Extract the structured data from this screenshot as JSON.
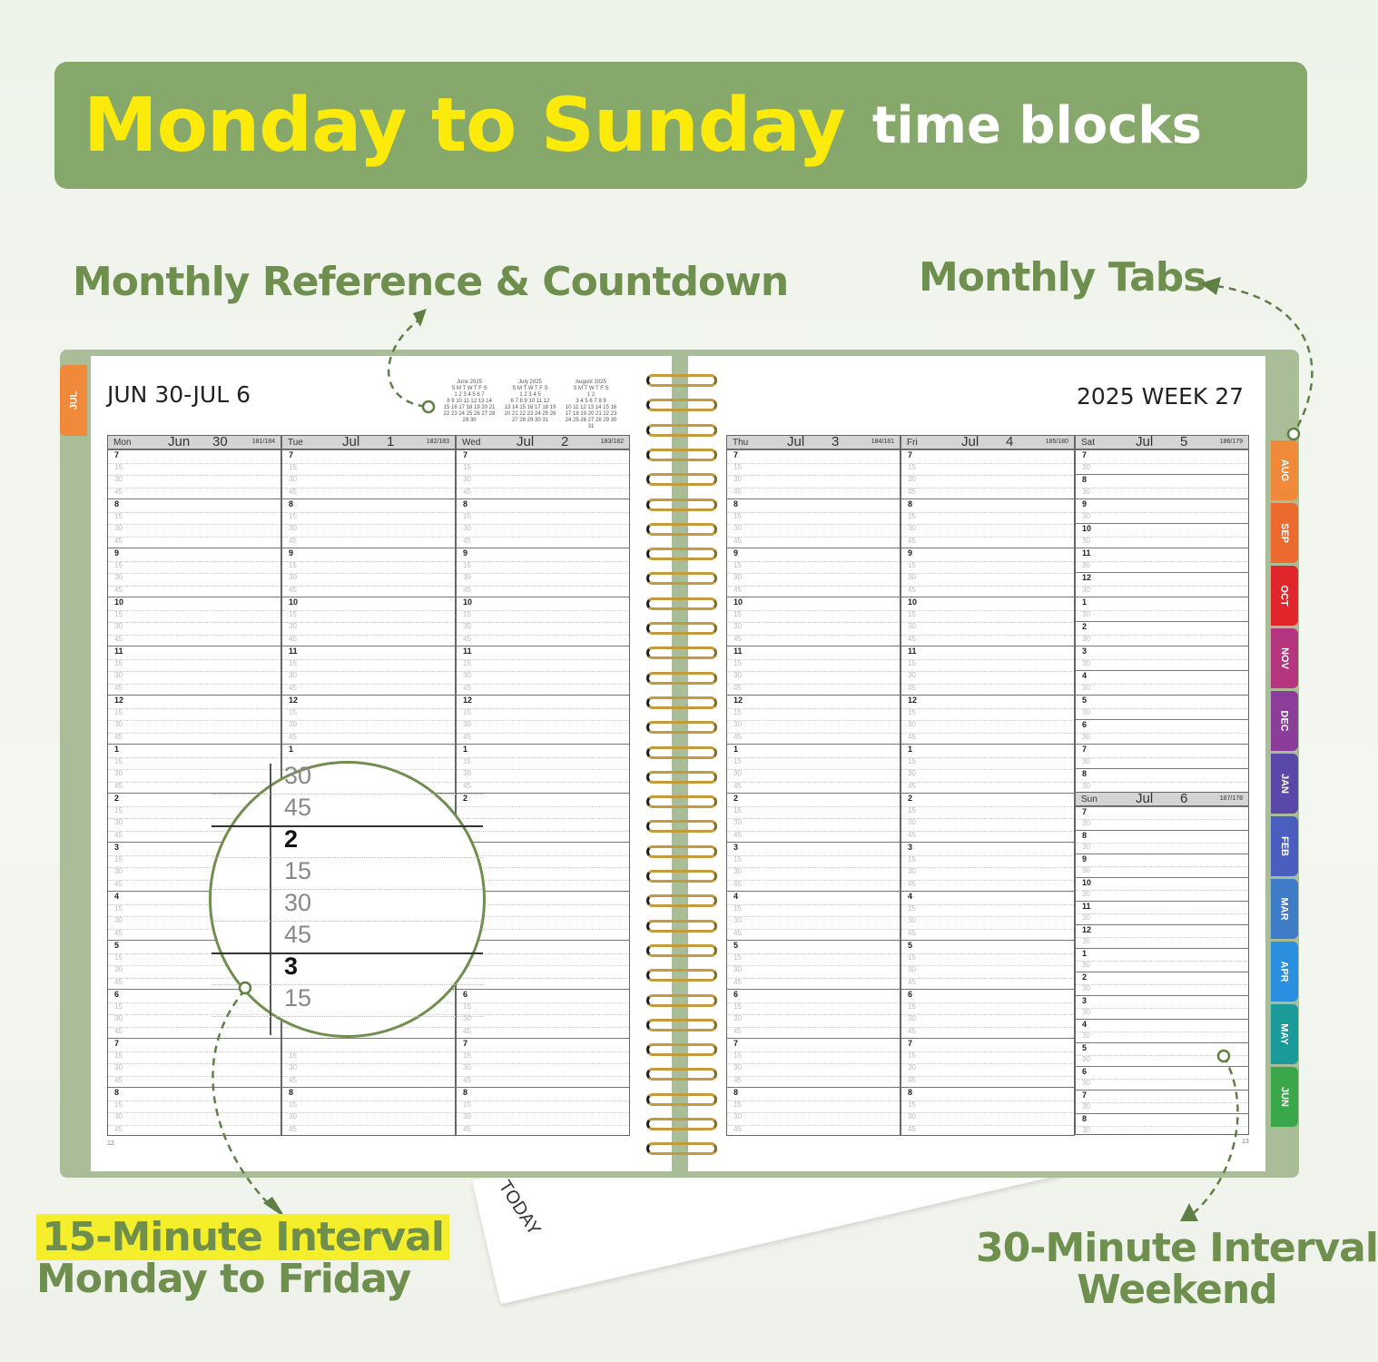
{
  "banner": {
    "title_main": "Monday to Sunday",
    "title_sub": "time blocks",
    "bg": "#86a86a",
    "accent": "#fbea0a"
  },
  "callouts": {
    "monthly_ref": "Monthly Reference & Countdown",
    "monthly_tabs": "Monthly Tabs",
    "fifteen_line1": "15-Minute Interval",
    "fifteen_line2": "Monday to Friday",
    "thirty_line1": "30-Minute Interval",
    "thirty_line2": "Weekend"
  },
  "left_page": {
    "title": "JUN 30-JUL 6",
    "side_tab": "JUL",
    "page_number": "12",
    "mini_calendars": [
      {
        "title": "June 2025",
        "rows": [
          "S M T W T F S",
          "1 2 3 4 5 6 7",
          "8 9 10 11 12 13 14",
          "15 16 17 18 19 20 21",
          "22 23 24 25 26 27 28",
          "29 30"
        ]
      },
      {
        "title": "July 2025",
        "rows": [
          "S M T W T F S",
          "1 2 3 4 5",
          "6 7 8 9 10 11 12",
          "13 14 15 16 17 18 19",
          "20 21 22 23 24 25 26",
          "27 28 29 30 31"
        ]
      },
      {
        "title": "August 2025",
        "rows": [
          "S M T W T F S",
          "1 2",
          "3 4 5 6 7 8 9",
          "10 11 12 13 14 15 16",
          "17 18 19 20 21 22 23",
          "24 25 26 27 28 29 30",
          "31"
        ]
      }
    ],
    "days": [
      {
        "dow": "Mon",
        "month": "Jun",
        "date": "30",
        "count": "181/184"
      },
      {
        "dow": "Tue",
        "month": "Jul",
        "date": "1",
        "count": "182/183"
      },
      {
        "dow": "Wed",
        "month": "Jul",
        "date": "2",
        "count": "183/182"
      }
    ]
  },
  "right_page": {
    "title": "2025  WEEK 27",
    "page_number": "13",
    "days": [
      {
        "dow": "Thu",
        "month": "Jul",
        "date": "3",
        "count": "184/181"
      },
      {
        "dow": "Fri",
        "month": "Jul",
        "date": "4",
        "count": "185/180"
      }
    ],
    "saturday": {
      "dow": "Sat",
      "month": "Jul",
      "date": "5",
      "count": "186/179"
    },
    "sunday": {
      "dow": "Sun",
      "month": "Jul",
      "date": "6",
      "count": "187/178"
    }
  },
  "hours": [
    "7",
    "8",
    "9",
    "10",
    "11",
    "12",
    "1",
    "2",
    "3",
    "4",
    "5",
    "6",
    "7",
    "8"
  ],
  "quarters": [
    "15",
    "30",
    "45"
  ],
  "half": "30",
  "magnifier": [
    "30",
    "45",
    "2",
    "15",
    "30",
    "45",
    "3",
    "15"
  ],
  "tabs": [
    {
      "label": "AUG",
      "color": "#f08a3a"
    },
    {
      "label": "SEP",
      "color": "#ec6a2e"
    },
    {
      "label": "OCT",
      "color": "#e0262a"
    },
    {
      "label": "NOV",
      "color": "#b5367e"
    },
    {
      "label": "DEC",
      "color": "#8a3e9a"
    },
    {
      "label": "JAN",
      "color": "#5a48a8"
    },
    {
      "label": "FEB",
      "color": "#4a5ec0"
    },
    {
      "label": "MAR",
      "color": "#3f7cc8"
    },
    {
      "label": "APR",
      "color": "#2a8fe0"
    },
    {
      "label": "MAY",
      "color": "#1a9a9a"
    },
    {
      "label": "JUN",
      "color": "#3aa84a"
    }
  ],
  "ruler_label": "TODAY"
}
